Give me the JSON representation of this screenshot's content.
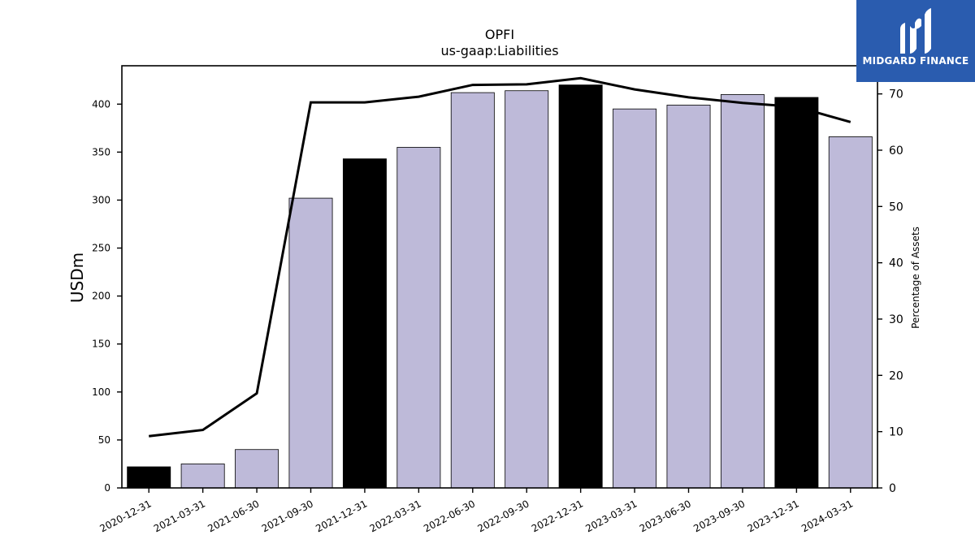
{
  "chart_data": {
    "type": "bar",
    "title": "OPFI",
    "subtitle": "us-gaap:Liabilities",
    "ylabel": "USDm",
    "y2label": "Percentage of Assets",
    "ylim": [
      0,
      440
    ],
    "y2lim": [
      0,
      75
    ],
    "yticks": [
      0,
      50,
      100,
      150,
      200,
      250,
      300,
      350,
      400
    ],
    "y2ticks": [
      0,
      10,
      20,
      30,
      40,
      50,
      60,
      70
    ],
    "categories": [
      "2020-12-31",
      "2021-03-31",
      "2021-06-30",
      "2021-09-30",
      "2021-12-31",
      "2022-03-31",
      "2022-06-30",
      "2022-09-30",
      "2022-12-31",
      "2023-03-31",
      "2023-06-30",
      "2023-09-30",
      "2023-12-31",
      "2024-03-31"
    ],
    "series": [
      {
        "type": "bar",
        "values": [
          22,
          25,
          40,
          302,
          343,
          355,
          412,
          414,
          420,
          395,
          399,
          410,
          407,
          366
        ],
        "highlight": [
          true,
          false,
          false,
          false,
          true,
          false,
          false,
          false,
          true,
          false,
          false,
          false,
          true,
          false
        ]
      },
      {
        "type": "line",
        "axis": "right",
        "values": [
          9.2,
          10.3,
          16.8,
          68.5,
          68.5,
          69.5,
          71.6,
          71.7,
          72.8,
          70.8,
          69.4,
          68.4,
          67.7,
          65.0
        ]
      }
    ],
    "colors": {
      "bar": "#bebad9",
      "highlight": "#000000",
      "line": "#000000"
    },
    "grid": false,
    "legend": "none"
  },
  "logo": {
    "text": "MIDGARD FINANCE",
    "color": "#2a5caf"
  }
}
